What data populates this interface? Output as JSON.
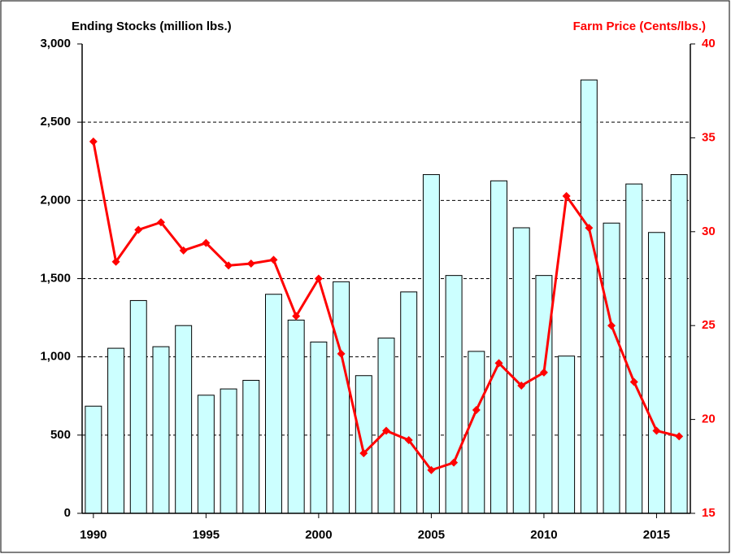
{
  "chart_data": {
    "type": "bar",
    "y_title": "Ending Stocks (million lbs.)",
    "y2_title": "Farm Price (Cents/lbs.)",
    "x": [
      1990,
      1991,
      1992,
      1993,
      1994,
      1995,
      1996,
      1997,
      1998,
      1999,
      2000,
      2001,
      2002,
      2003,
      2004,
      2005,
      2006,
      2007,
      2008,
      2009,
      2010,
      2011,
      2012,
      2013,
      2014,
      2015,
      2016
    ],
    "xlim": [
      1989.5,
      2016.5
    ],
    "xticks": [
      1990,
      1995,
      2000,
      2005,
      2010,
      2015
    ],
    "ylim": [
      0,
      3000
    ],
    "yticks": [
      0,
      500,
      {
        "value": 1000,
        "label": "1,000"
      },
      {
        "value": 1500,
        "label": "1,500"
      },
      {
        "value": 2000,
        "label": "2,000"
      },
      {
        "value": 2500,
        "label": "2,500"
      },
      {
        "value": 3000,
        "label": "3,000"
      }
    ],
    "y2lim": [
      15,
      40
    ],
    "y2ticks": [
      15,
      20,
      25,
      30,
      35,
      40
    ],
    "grid": true,
    "series": [
      {
        "type": "bar",
        "axis": "y",
        "color": "#ccffff",
        "values": [
          685,
          1055,
          1360,
          1065,
          1200,
          755,
          795,
          850,
          1400,
          1235,
          1095,
          1480,
          880,
          1120,
          1415,
          2165,
          1520,
          1035,
          2125,
          1825,
          1520,
          1005,
          2770,
          1855,
          2105,
          1795,
          2165
        ]
      },
      {
        "type": "line",
        "axis": "y2",
        "color": "#ff0000",
        "values": [
          34.8,
          28.4,
          30.1,
          30.5,
          29.0,
          29.4,
          28.2,
          28.3,
          28.5,
          25.5,
          27.5,
          23.5,
          18.2,
          19.4,
          18.9,
          17.3,
          17.7,
          20.5,
          23.0,
          21.8,
          22.5,
          31.9,
          30.2,
          25.0,
          22.0,
          19.4,
          19.1
        ]
      }
    ]
  }
}
